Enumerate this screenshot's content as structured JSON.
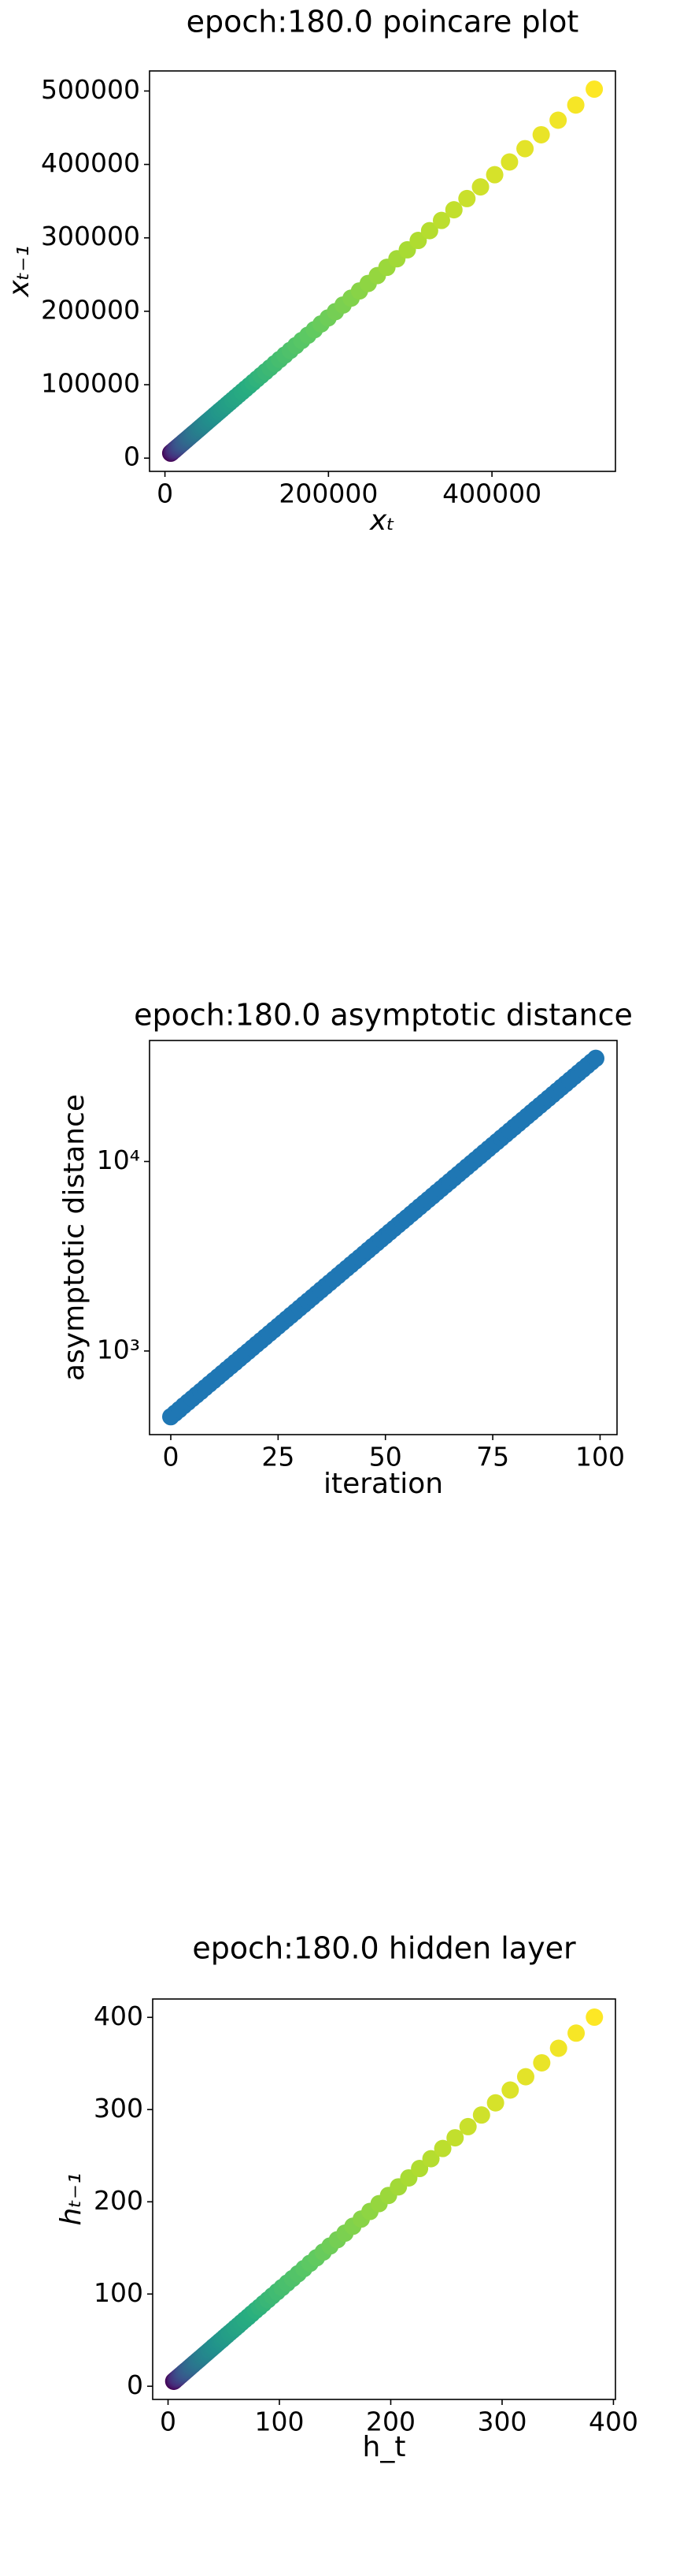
{
  "chart_data": [
    {
      "type": "scatter",
      "title": "epoch:180.0 poincare plot",
      "xlabel": "xₜ",
      "ylabel": "xₜ₋₁",
      "colormap": "viridis",
      "x": [
        7053,
        7371,
        7703,
        8049,
        8411,
        8789,
        9185,
        9597,
        10029,
        10479,
        10950,
        11442,
        11957,
        12495,
        13056,
        13644,
        14258,
        14898,
        15569,
        16268,
        17000,
        17765,
        18563,
        19398,
        20270,
        21182,
        22134,
        23129,
        24170,
        25254,
        26390,
        27576,
        28817,
        30113,
        31467,
        32882,
        34361,
        35906,
        37520,
        39204,
        40968,
        42810,
        44735,
        46746,
        48849,
        51045,
        53340,
        55739,
        58245,
        60861,
        63599,
        66458,
        69446,
        72569,
        75831,
        79241,
        82803,
        86526,
        90417,
        94482,
        98730,
        103170,
        107810,
        112656,
        117722,
        123015,
        128546,
        134327,
        140366,
        146673,
        153270,
        160155,
        167355,
        174885,
        182745,
        190965,
        199545,
        208515,
        217890,
        227700,
        237930,
        248625,
        259815,
        271500,
        283695,
        296460,
        309780,
        323715,
        338265,
        353475,
        369375,
        385980,
        403335,
        421470,
        440415,
        460215,
        480915,
        502530,
        525135
      ],
      "y": [
        6750,
        7053,
        7371,
        7703,
        8049,
        8411,
        8789,
        9185,
        9597,
        10029,
        10479,
        10950,
        11442,
        11957,
        12495,
        13056,
        13644,
        14258,
        14898,
        15569,
        16268,
        17000,
        17765,
        18563,
        19398,
        20270,
        21182,
        22134,
        23129,
        24170,
        25254,
        26390,
        27576,
        28817,
        30113,
        31467,
        32882,
        34361,
        35906,
        37520,
        39204,
        40968,
        42810,
        44735,
        46746,
        48849,
        51045,
        53340,
        55739,
        58245,
        60861,
        63599,
        66458,
        69446,
        72569,
        75831,
        79241,
        82803,
        86526,
        90417,
        94482,
        98730,
        103170,
        107810,
        112656,
        117722,
        123015,
        128546,
        134327,
        140366,
        146673,
        153270,
        160155,
        167355,
        174885,
        182745,
        190965,
        199545,
        208515,
        217890,
        227700,
        237930,
        248625,
        259815,
        271500,
        283695,
        296460,
        309780,
        323715,
        338265,
        353475,
        369375,
        385980,
        403335,
        421470,
        440415,
        460215,
        480915,
        502530
      ],
      "xlim": [
        -18851,
        551039
      ],
      "ylim": [
        -18039,
        527319
      ],
      "xticks": [
        0,
        200000,
        400000
      ],
      "yticks": [
        0,
        100000,
        200000,
        300000,
        400000,
        500000
      ]
    },
    {
      "type": "scatter",
      "title": "epoch:180.0 asymptotic distance",
      "xlabel": "iteration",
      "ylabel": "asymptotic distance",
      "color": "#1f77b4",
      "yscale": "log",
      "x": [
        0,
        1,
        2,
        3,
        4,
        5,
        6,
        7,
        8,
        9,
        10,
        11,
        12,
        13,
        14,
        15,
        16,
        17,
        18,
        19,
        20,
        21,
        22,
        23,
        24,
        25,
        26,
        27,
        28,
        29,
        30,
        31,
        32,
        33,
        34,
        35,
        36,
        37,
        38,
        39,
        40,
        41,
        42,
        43,
        44,
        45,
        46,
        47,
        48,
        49,
        50,
        51,
        52,
        53,
        54,
        55,
        56,
        57,
        58,
        59,
        60,
        61,
        62,
        63,
        64,
        65,
        66,
        67,
        68,
        69,
        70,
        71,
        72,
        73,
        74,
        75,
        76,
        77,
        78,
        79,
        80,
        81,
        82,
        83,
        84,
        85,
        86,
        87,
        88,
        89,
        90,
        91,
        92,
        93,
        94,
        95,
        96,
        97,
        98,
        99
      ],
      "y": [
        450,
        470,
        491,
        514,
        537,
        561,
        586,
        612,
        640,
        669,
        699,
        730,
        763,
        797,
        833,
        870,
        910,
        951,
        993,
        1038,
        1085,
        1133,
        1184,
        1238,
        1293,
        1351,
        1412,
        1476,
        1542,
        1611,
        1684,
        1759,
        1838,
        1921,
        2008,
        2098,
        2192,
        2291,
        2394,
        2501,
        2614,
        2731,
        2854,
        2982,
        3116,
        3257,
        3403,
        3556,
        3716,
        3883,
        4057,
        4240,
        4431,
        4630,
        4838,
        5055,
        5283,
        5520,
        5768,
        6028,
        6299,
        6582,
        6878,
        7187,
        7510,
        7848,
        8201,
        8570,
        8955,
        9358,
        9778,
        10218,
        10677,
        11157,
        11659,
        12183,
        12731,
        13303,
        13901,
        14526,
        15180,
        15862,
        16575,
        17321,
        18100,
        18913,
        19764,
        20652,
        21581,
        22551,
        23565,
        24625,
        25732,
        26889,
        28098,
        29361,
        30681,
        32061,
        33502,
        35009
      ],
      "xlim": [
        -4.95,
        103.95
      ],
      "ylim": [
        362,
        43500
      ],
      "xticks": [
        0,
        25,
        50,
        75,
        100
      ],
      "yticks": [
        {
          "value": 1000,
          "label": "10³"
        },
        {
          "value": 10000,
          "label": "10⁴"
        }
      ]
    },
    {
      "type": "scatter",
      "title": "epoch:180.0 hidden layer",
      "xlabel": "h_t",
      "ylabel": "hₜ₋₁",
      "colormap": "viridis",
      "x": [
        5.1,
        5.4,
        5.6,
        5.9,
        6.1,
        6.4,
        6.7,
        7.0,
        7.3,
        7.6,
        8.0,
        8.3,
        8.7,
        9.1,
        9.5,
        9.9,
        10.4,
        10.9,
        11.4,
        11.9,
        12.4,
        13.0,
        13.5,
        14.1,
        14.8,
        15.4,
        16.1,
        16.9,
        17.6,
        18.4,
        19.2,
        20.1,
        21.0,
        22.0,
        22.9,
        24.0,
        25.1,
        26.2,
        27.4,
        28.6,
        29.9,
        31.2,
        32.6,
        34.1,
        35.6,
        37.2,
        38.9,
        40.6,
        42.5,
        44.4,
        46.4,
        48.5,
        50.6,
        52.9,
        55.3,
        57.8,
        60.4,
        63.1,
        65.9,
        68.9,
        72.0,
        75.2,
        78.6,
        82.2,
        85.8,
        89.7,
        93.7,
        98.0,
        102.4,
        107.0,
        111.8,
        116.8,
        122.0,
        127.5,
        133.3,
        139.3,
        145.5,
        152.1,
        158.9,
        166.0,
        173.5,
        181.3,
        189.5,
        198.0,
        206.9,
        216.2,
        225.9,
        236.1,
        246.7,
        257.8,
        269.4,
        281.5,
        294.1,
        307.3,
        321.2,
        335.6,
        350.7,
        366.5,
        382.9
      ],
      "y": [
        5.4,
        5.6,
        5.9,
        6.1,
        6.4,
        6.7,
        7.0,
        7.3,
        7.6,
        8.0,
        8.3,
        8.7,
        9.1,
        9.5,
        9.9,
        10.4,
        10.9,
        11.4,
        11.9,
        12.4,
        13.0,
        13.5,
        14.1,
        14.8,
        15.4,
        16.1,
        16.9,
        17.6,
        18.4,
        19.2,
        20.1,
        21.0,
        22.0,
        22.9,
        24.0,
        25.1,
        26.2,
        27.4,
        28.6,
        29.9,
        31.2,
        32.6,
        34.1,
        35.6,
        37.2,
        38.9,
        40.6,
        42.5,
        44.4,
        46.4,
        48.5,
        50.6,
        52.9,
        55.3,
        57.8,
        60.4,
        63.1,
        65.9,
        68.9,
        72.0,
        75.2,
        78.6,
        82.2,
        85.8,
        89.7,
        93.7,
        98.0,
        102.4,
        107.0,
        111.8,
        116.8,
        122.0,
        127.5,
        133.3,
        139.3,
        145.5,
        152.1,
        158.9,
        166.0,
        173.5,
        181.3,
        189.5,
        198.0,
        206.9,
        216.2,
        225.9,
        236.1,
        246.7,
        257.8,
        269.4,
        281.5,
        294.1,
        307.3,
        321.2,
        335.6,
        350.7,
        366.5,
        382.9,
        400.2
      ],
      "xlim": [
        -13.8,
        401.8
      ],
      "ylim": [
        -14.3,
        419.9
      ],
      "xticks": [
        0,
        100,
        200,
        300,
        400
      ],
      "yticks": [
        0,
        100,
        200,
        300,
        400
      ]
    }
  ]
}
